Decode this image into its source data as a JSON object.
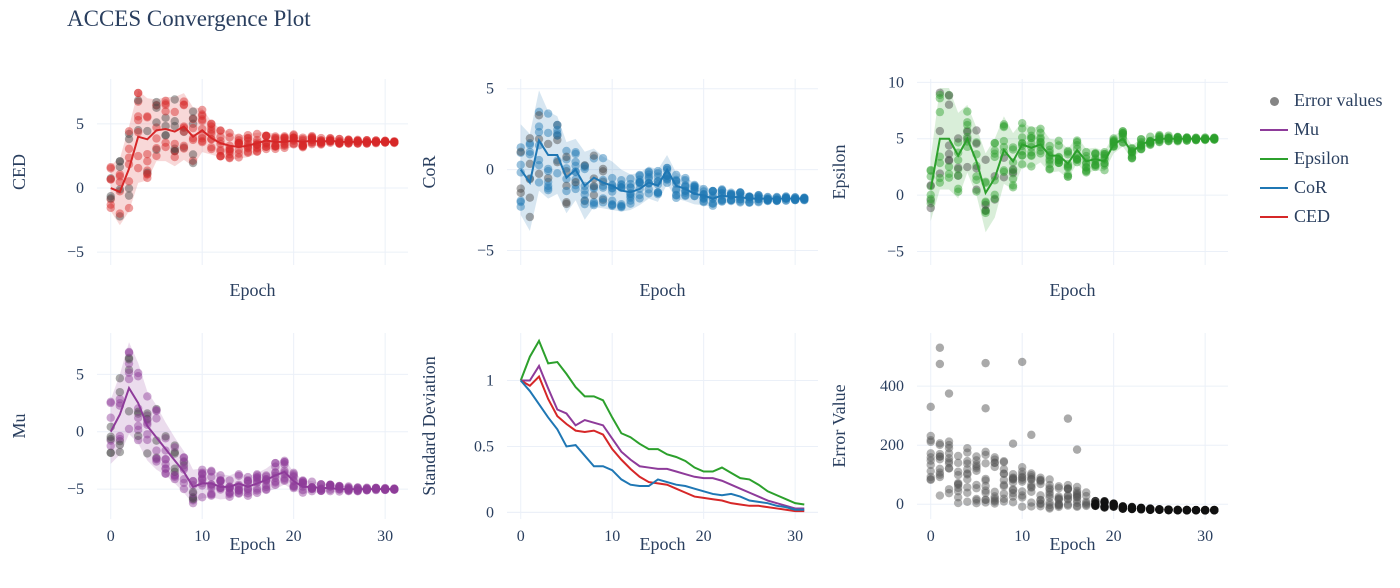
{
  "title": "ACCES Convergence Plot",
  "colors": {
    "CED": "#d62728",
    "CoR": "#1f77b4",
    "Epsilon": "#2ca02c",
    "Mu": "#8e3b9a",
    "error": "#555555"
  },
  "legend": [
    {
      "label": "Error values",
      "kind": "marker",
      "color": "#666666"
    },
    {
      "label": "Mu",
      "kind": "line",
      "color": "#8e3b9a"
    },
    {
      "label": "Epsilon",
      "kind": "line",
      "color": "#2ca02c"
    },
    {
      "label": "CoR",
      "kind": "line",
      "color": "#1f77b4"
    },
    {
      "label": "CED",
      "kind": "line",
      "color": "#d62728"
    }
  ],
  "chart_data": [
    {
      "id": "ced",
      "type": "scatter+line+band",
      "xlabel": "Epoch",
      "ylabel": "CED",
      "xlim": [
        -1.5,
        32.5
      ],
      "ylim": [
        -6,
        8.5
      ],
      "xticks": [
        0,
        10,
        20,
        30
      ],
      "xtick_labels": [
        "",
        "",
        "",
        ""
      ],
      "yticks": [
        -5,
        0,
        5
      ],
      "ytick_labels": [
        "−5",
        "0",
        "5"
      ],
      "grid": true,
      "color": "CED",
      "epochs": [
        0,
        1,
        2,
        3,
        4,
        5,
        6,
        7,
        8,
        9,
        10,
        11,
        12,
        13,
        14,
        15,
        16,
        17,
        18,
        19,
        20,
        21,
        22,
        23,
        24,
        25,
        26,
        27,
        28,
        29,
        30,
        31
      ],
      "mean": [
        0.0,
        -0.3,
        1.5,
        4.0,
        3.8,
        4.5,
        4.6,
        4.4,
        4.8,
        4.0,
        4.5,
        3.9,
        3.5,
        3.3,
        3.2,
        3.3,
        3.5,
        3.7,
        3.6,
        3.6,
        3.7,
        3.6,
        3.7,
        3.6,
        3.7,
        3.6,
        3.6,
        3.6,
        3.6,
        3.6,
        3.6,
        3.6
      ],
      "std": [
        1.8,
        2.6,
        3.3,
        3.6,
        3.2,
        2.4,
        2.5,
        2.7,
        2.6,
        2.3,
        1.7,
        1.3,
        1.1,
        1.1,
        0.9,
        0.9,
        0.8,
        0.7,
        0.6,
        0.55,
        0.5,
        0.45,
        0.4,
        0.35,
        0.3,
        0.25,
        0.2,
        0.18,
        0.15,
        0.12,
        0.1,
        0.1
      ],
      "min_spread": 0.1
    },
    {
      "id": "cor",
      "type": "scatter+line+band",
      "xlabel": "Epoch",
      "ylabel": "CoR",
      "xlim": [
        -1.5,
        32.5
      ],
      "ylim": [
        -5.9,
        5.6
      ],
      "xticks": [
        0,
        10,
        20,
        30
      ],
      "xtick_labels": [
        "",
        "",
        "",
        ""
      ],
      "yticks": [
        -5,
        0,
        5
      ],
      "ytick_labels": [
        "−5",
        "0",
        "5"
      ],
      "grid": true,
      "color": "CoR",
      "epochs": [
        0,
        1,
        2,
        3,
        4,
        5,
        6,
        7,
        8,
        9,
        10,
        11,
        12,
        13,
        14,
        15,
        16,
        17,
        18,
        19,
        20,
        21,
        22,
        23,
        24,
        25,
        26,
        27,
        28,
        29,
        30,
        31
      ],
      "mean": [
        0.0,
        -0.8,
        1.8,
        0.9,
        0.9,
        -0.5,
        0.0,
        -1.0,
        -0.5,
        -0.8,
        -1.0,
        -1.3,
        -1.4,
        -1.2,
        -0.8,
        -1.0,
        0.0,
        -1.0,
        -1.2,
        -1.5,
        -1.6,
        -1.8,
        -1.6,
        -1.7,
        -1.7,
        -1.8,
        -1.8,
        -1.8,
        -1.8,
        -1.8,
        -1.8,
        -1.8
      ],
      "std": [
        2.8,
        3.0,
        3.1,
        2.7,
        2.4,
        2.2,
        1.9,
        2.1,
        1.8,
        1.6,
        1.5,
        1.3,
        1.1,
        1.0,
        1.0,
        1.0,
        0.9,
        0.8,
        0.75,
        0.65,
        0.6,
        0.5,
        0.45,
        0.4,
        0.35,
        0.3,
        0.25,
        0.2,
        0.18,
        0.15,
        0.12,
        0.1
      ],
      "min_spread": 0.1
    },
    {
      "id": "eps",
      "type": "scatter+line+band",
      "xlabel": "Epoch",
      "ylabel": "Epsilon",
      "xlim": [
        -1.5,
        32.5
      ],
      "ylim": [
        -6.2,
        10.3
      ],
      "xticks": [
        0,
        10,
        20,
        30
      ],
      "xtick_labels": [
        "",
        "",
        "",
        ""
      ],
      "yticks": [
        -5,
        0,
        5,
        10
      ],
      "ytick_labels": [
        "−5",
        "0",
        "5",
        "10"
      ],
      "grid": true,
      "color": "Epsilon",
      "epochs": [
        0,
        1,
        2,
        3,
        4,
        5,
        6,
        7,
        8,
        9,
        10,
        11,
        12,
        13,
        14,
        15,
        16,
        17,
        18,
        19,
        20,
        21,
        22,
        23,
        24,
        25,
        26,
        27,
        28,
        29,
        30,
        31
      ],
      "mean": [
        0.5,
        5.0,
        5.0,
        3.5,
        5.0,
        3.0,
        0.2,
        1.5,
        4.0,
        3.0,
        4.5,
        4.2,
        4.5,
        3.5,
        3.5,
        2.8,
        4.0,
        3.0,
        3.2,
        3.0,
        4.5,
        5.0,
        3.8,
        4.5,
        4.8,
        5.0,
        5.0,
        5.0,
        5.0,
        5.0,
        5.0,
        5.0
      ],
      "std": [
        2.8,
        4.5,
        4.5,
        3.8,
        3.0,
        3.0,
        3.5,
        3.5,
        3.0,
        2.5,
        2.0,
        1.8,
        1.6,
        1.5,
        1.4,
        1.3,
        1.2,
        1.1,
        1.0,
        0.9,
        0.8,
        0.7,
        0.6,
        0.5,
        0.4,
        0.35,
        0.3,
        0.25,
        0.2,
        0.15,
        0.12,
        0.1
      ],
      "min_spread": 0.1
    },
    {
      "id": "mu",
      "type": "scatter+line+band",
      "xlabel": "Epoch",
      "ylabel": "Mu",
      "xlim": [
        -1.5,
        32.5
      ],
      "ylim": [
        -7.6,
        8.6
      ],
      "xticks": [
        0,
        10,
        20,
        30
      ],
      "xtick_labels": [
        "0",
        "10",
        "20",
        "30"
      ],
      "yticks": [
        -5,
        0,
        5
      ],
      "ytick_labels": [
        "−5",
        "0",
        "5"
      ],
      "grid": true,
      "color": "Mu",
      "epochs": [
        0,
        1,
        2,
        3,
        4,
        5,
        6,
        7,
        8,
        9,
        10,
        11,
        12,
        13,
        14,
        15,
        16,
        17,
        18,
        19,
        20,
        21,
        22,
        23,
        24,
        25,
        26,
        27,
        28,
        29,
        30,
        31
      ],
      "mean": [
        0.0,
        1.5,
        3.8,
        2.5,
        0.5,
        -0.5,
        -1.5,
        -2.5,
        -3.5,
        -4.8,
        -4.5,
        -4.5,
        -4.8,
        -4.8,
        -4.5,
        -4.8,
        -4.5,
        -4.2,
        -3.8,
        -3.5,
        -4.3,
        -4.8,
        -4.8,
        -4.9,
        -4.9,
        -5.0,
        -5.0,
        -5.0,
        -5.0,
        -5.0,
        -5.0,
        -5.0
      ],
      "std": [
        2.8,
        3.5,
        4.0,
        3.5,
        3.0,
        2.8,
        2.3,
        2.0,
        1.8,
        1.5,
        1.3,
        1.2,
        1.1,
        1.0,
        1.0,
        0.9,
        0.9,
        1.0,
        1.2,
        1.1,
        0.8,
        0.6,
        0.5,
        0.4,
        0.35,
        0.3,
        0.25,
        0.2,
        0.15,
        0.12,
        0.1,
        0.1
      ],
      "min_spread": 0.1
    },
    {
      "id": "std",
      "type": "line",
      "xlabel": "Epoch",
      "ylabel": "Standard Deviation",
      "xlim": [
        -1.5,
        32.5
      ],
      "ylim": [
        -0.05,
        1.36
      ],
      "xticks": [
        0,
        10,
        20,
        30
      ],
      "xtick_labels": [
        "0",
        "10",
        "20",
        "30"
      ],
      "yticks": [
        0,
        0.5,
        1
      ],
      "ytick_labels": [
        "0",
        "0.5",
        "1"
      ],
      "grid": true,
      "x": [
        0,
        1,
        2,
        3,
        4,
        5,
        6,
        7,
        8,
        9,
        10,
        11,
        12,
        13,
        14,
        15,
        16,
        17,
        18,
        19,
        20,
        21,
        22,
        23,
        24,
        25,
        26,
        27,
        28,
        29,
        30,
        31
      ],
      "series": [
        {
          "name": "Epsilon",
          "color": "Epsilon",
          "values": [
            1.0,
            1.18,
            1.3,
            1.13,
            1.14,
            1.05,
            0.95,
            0.88,
            0.88,
            0.85,
            0.72,
            0.6,
            0.57,
            0.52,
            0.48,
            0.48,
            0.44,
            0.42,
            0.39,
            0.34,
            0.31,
            0.31,
            0.34,
            0.3,
            0.26,
            0.25,
            0.21,
            0.16,
            0.13,
            0.1,
            0.07,
            0.06
          ]
        },
        {
          "name": "Mu",
          "color": "Mu",
          "values": [
            1.0,
            1.0,
            1.11,
            0.94,
            0.78,
            0.75,
            0.66,
            0.7,
            0.68,
            0.66,
            0.56,
            0.46,
            0.4,
            0.35,
            0.34,
            0.33,
            0.33,
            0.31,
            0.29,
            0.27,
            0.26,
            0.26,
            0.24,
            0.21,
            0.18,
            0.15,
            0.12,
            0.09,
            0.07,
            0.05,
            0.03,
            0.03
          ]
        },
        {
          "name": "CED",
          "color": "CED",
          "values": [
            1.0,
            0.96,
            1.03,
            0.86,
            0.73,
            0.67,
            0.62,
            0.61,
            0.62,
            0.59,
            0.48,
            0.4,
            0.33,
            0.27,
            0.23,
            0.22,
            0.21,
            0.18,
            0.15,
            0.12,
            0.11,
            0.1,
            0.09,
            0.07,
            0.06,
            0.05,
            0.05,
            0.04,
            0.03,
            0.02,
            0.01,
            0.01
          ]
        },
        {
          "name": "CoR",
          "color": "CoR",
          "values": [
            1.0,
            0.92,
            0.82,
            0.72,
            0.63,
            0.5,
            0.51,
            0.43,
            0.35,
            0.35,
            0.32,
            0.25,
            0.21,
            0.2,
            0.2,
            0.25,
            0.23,
            0.21,
            0.2,
            0.18,
            0.16,
            0.14,
            0.13,
            0.14,
            0.12,
            0.09,
            0.08,
            0.07,
            0.05,
            0.04,
            0.02,
            0.02
          ]
        }
      ]
    },
    {
      "id": "err",
      "type": "scatter",
      "xlabel": "Epoch",
      "ylabel": "Error Value",
      "xlim": [
        -1.5,
        32.5
      ],
      "ylim": [
        -50,
        580
      ],
      "xticks": [
        0,
        10,
        20,
        30
      ],
      "xtick_labels": [
        "0",
        "10",
        "20",
        "30"
      ],
      "yticks": [
        0,
        200,
        400
      ],
      "ytick_labels": [
        "0",
        "200",
        "400"
      ],
      "grid": true,
      "color": "error",
      "epochs": [
        0,
        1,
        2,
        3,
        4,
        5,
        6,
        7,
        8,
        9,
        10,
        11,
        12,
        13,
        14,
        15,
        16,
        17,
        18,
        19,
        20,
        21,
        22,
        23,
        24,
        25,
        26,
        27,
        28,
        29,
        30,
        31
      ],
      "center": [
        150,
        120,
        110,
        90,
        90,
        80,
        90,
        80,
        70,
        60,
        60,
        50,
        40,
        35,
        30,
        30,
        25,
        15,
        8,
        0,
        -5,
        -10,
        -12,
        -15,
        -17,
        -18,
        -19,
        -20,
        -20,
        -20,
        -20,
        -20
      ],
      "spread": [
        120,
        120,
        110,
        100,
        100,
        90,
        90,
        80,
        80,
        70,
        70,
        60,
        55,
        50,
        45,
        40,
        35,
        25,
        18,
        12,
        8,
        6,
        5,
        4,
        3,
        2,
        2,
        1,
        1,
        1,
        1,
        1
      ],
      "outliers": [
        [
          0,
          330
        ],
        [
          1,
          530
        ],
        [
          1,
          475
        ],
        [
          2,
          375
        ],
        [
          6,
          478
        ],
        [
          6,
          325
        ],
        [
          10,
          482
        ],
        [
          9,
          205
        ],
        [
          11,
          235
        ],
        [
          15,
          290
        ],
        [
          16,
          185
        ]
      ]
    }
  ]
}
